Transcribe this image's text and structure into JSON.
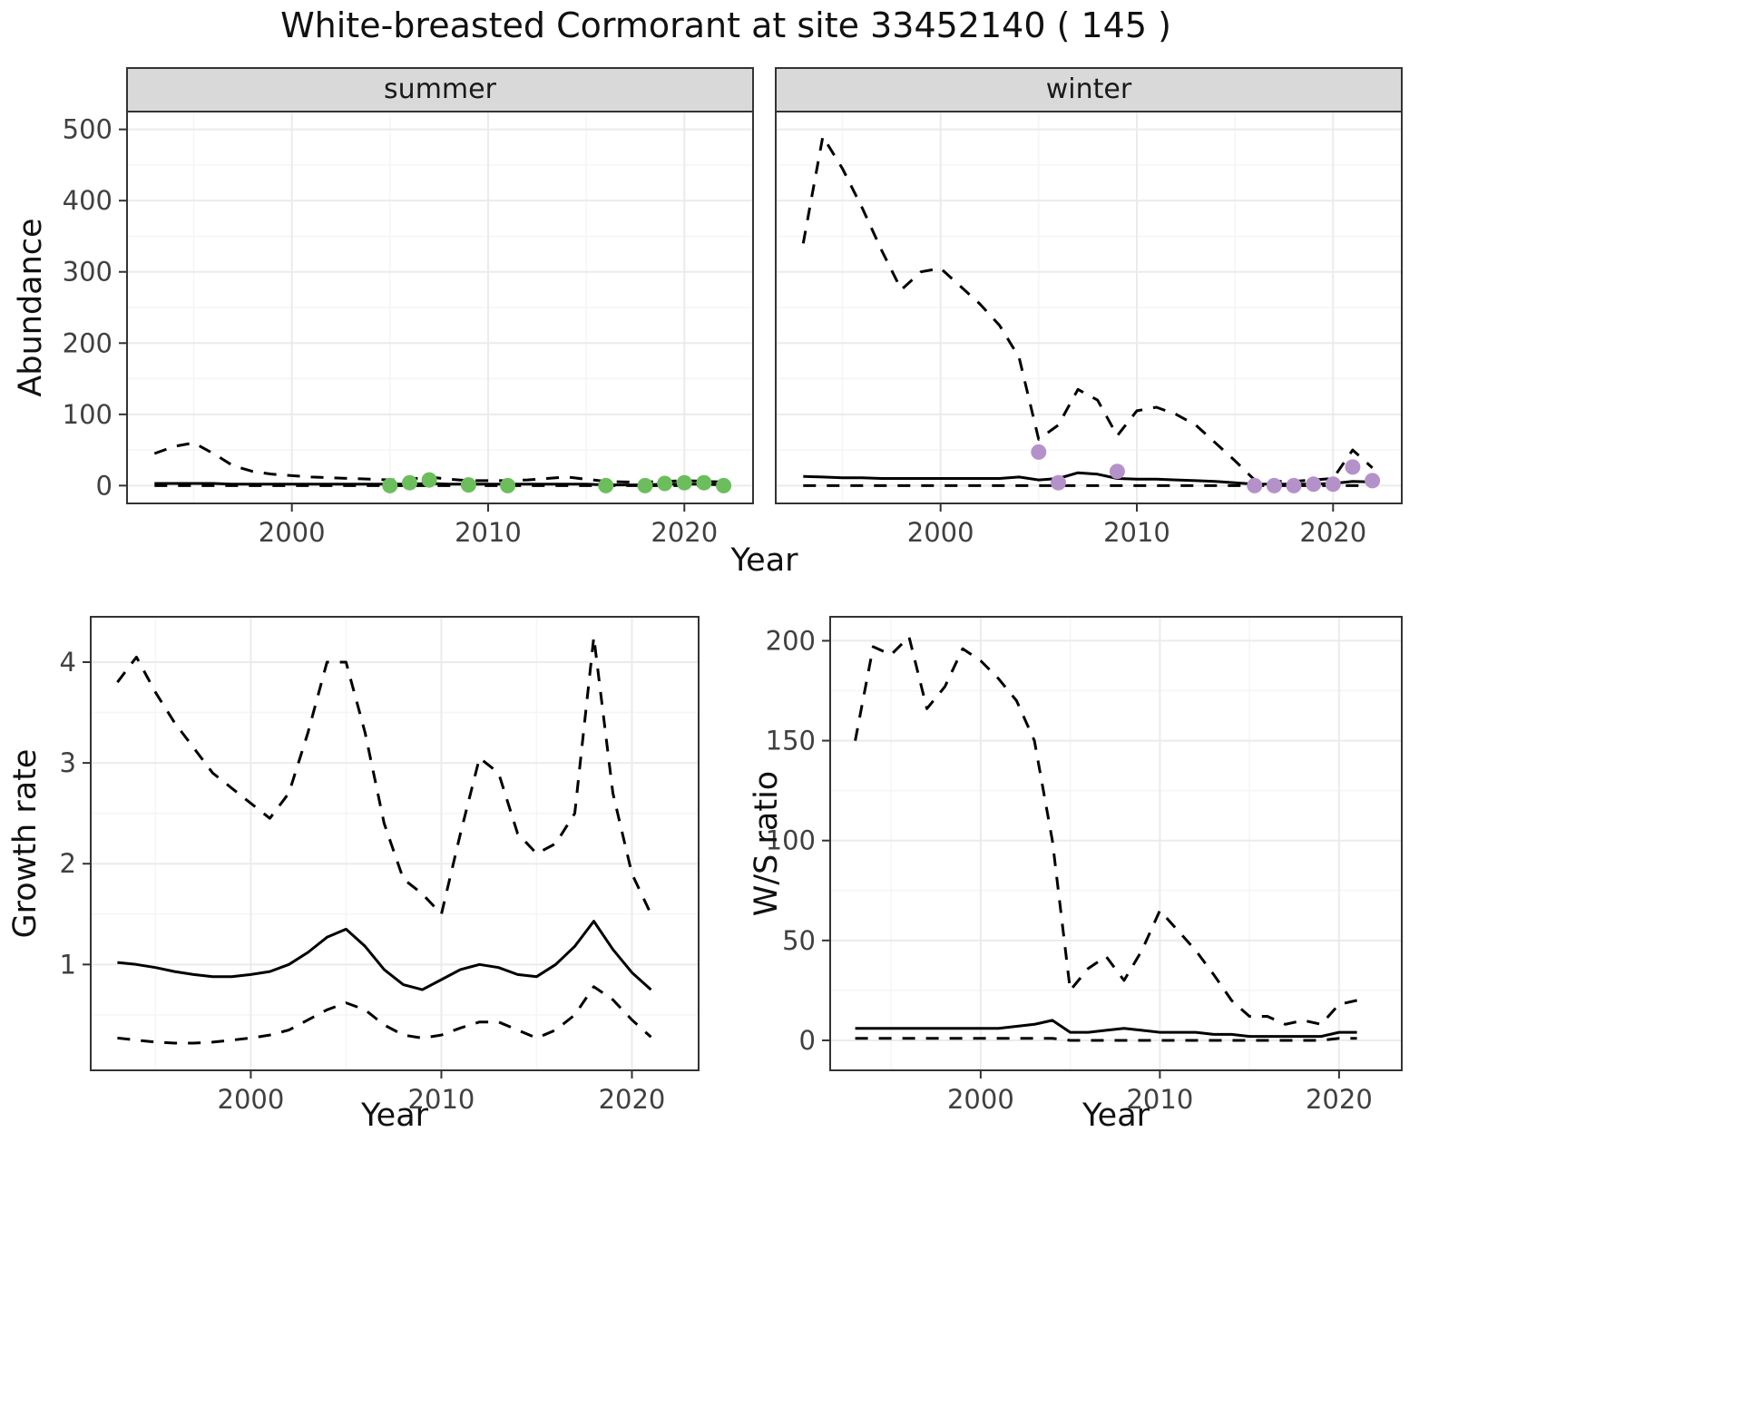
{
  "title": "White-breasted Cormorant at site 33452140 ( 145 )",
  "theme": {
    "panel_fill": "#ffffff",
    "strip_fill": "#d9d9d9",
    "grid_major": "#ebebeb",
    "grid_minor": "#f5f5f5",
    "border": "#333333",
    "tick_color": "#333333",
    "tick_label_color": "#404040",
    "line_color": "#000000",
    "summer_point_color": "#6bbe5b",
    "winter_point_color": "#b591c9"
  },
  "chart_data": [
    {
      "id": "abundance",
      "type": "line",
      "ylabel": "Abundance",
      "xlabel": "Year",
      "xlim": [
        1991.6,
        2023.5
      ],
      "ylim": [
        -25,
        525
      ],
      "xticks": [
        2000,
        2010,
        2020
      ],
      "yticks": [
        0,
        100,
        200,
        300,
        400,
        500
      ],
      "years": [
        1993,
        1994,
        1995,
        1996,
        1997,
        1998,
        1999,
        2000,
        2001,
        2002,
        2003,
        2004,
        2005,
        2006,
        2007,
        2008,
        2009,
        2010,
        2011,
        2012,
        2013,
        2014,
        2015,
        2016,
        2017,
        2018,
        2019,
        2020,
        2021,
        2022
      ],
      "facets": [
        {
          "label": "summer",
          "point_color": "#6bbe5b",
          "series": [
            {
              "name": "upper-ci",
              "style": "dashed",
              "values": [
                45,
                55,
                60,
                45,
                28,
                20,
                16,
                14,
                12,
                11,
                10,
                9,
                8,
                9,
                12,
                9,
                7,
                7,
                7,
                8,
                10,
                12,
                9,
                6,
                5,
                5,
                6,
                7,
                6,
                5
              ]
            },
            {
              "name": "mean",
              "style": "solid",
              "values": [
                3,
                3,
                3,
                3,
                2,
                2,
                2,
                2,
                2,
                2,
                2,
                2,
                2,
                2,
                3,
                2,
                2,
                2,
                2,
                2,
                2,
                2,
                2,
                1,
                1,
                1,
                2,
                2,
                2,
                1
              ]
            },
            {
              "name": "lower-ci",
              "style": "dashed",
              "values": [
                0,
                0,
                0,
                0,
                0,
                0,
                0,
                0,
                0,
                0,
                0,
                0,
                0,
                0,
                0,
                0,
                0,
                0,
                0,
                0,
                0,
                0,
                0,
                0,
                0,
                0,
                0,
                0,
                0,
                0
              ]
            }
          ],
          "observed_points": [
            [
              2005,
              0
            ],
            [
              2006,
              4
            ],
            [
              2007,
              8
            ],
            [
              2009,
              1
            ],
            [
              2011,
              0
            ],
            [
              2016,
              0
            ],
            [
              2018,
              0
            ],
            [
              2019,
              3
            ],
            [
              2020,
              4
            ],
            [
              2021,
              4
            ],
            [
              2022,
              0
            ]
          ]
        },
        {
          "label": "winter",
          "point_color": "#b591c9",
          "series": [
            {
              "name": "upper-ci",
              "style": "dashed",
              "values": [
                340,
                490,
                445,
                390,
                330,
                275,
                300,
                305,
                280,
                255,
                225,
                180,
                65,
                85,
                135,
                120,
                70,
                105,
                110,
                100,
                85,
                60,
                35,
                8,
                6,
                6,
                8,
                10,
                50,
                25
              ]
            },
            {
              "name": "mean",
              "style": "solid",
              "values": [
                13,
                12,
                11,
                11,
                10,
                10,
                10,
                10,
                10,
                10,
                10,
                12,
                8,
                10,
                18,
                16,
                10,
                9,
                9,
                8,
                7,
                6,
                4,
                2,
                2,
                2,
                2,
                3,
                6,
                5
              ]
            },
            {
              "name": "lower-ci",
              "style": "dashed",
              "values": [
                0,
                0,
                0,
                0,
                0,
                0,
                0,
                0,
                0,
                0,
                0,
                0,
                0,
                0,
                0,
                0,
                0,
                0,
                0,
                0,
                0,
                0,
                0,
                0,
                0,
                0,
                0,
                0,
                0,
                0
              ]
            }
          ],
          "observed_points": [
            [
              2005,
              47
            ],
            [
              2006,
              4
            ],
            [
              2009,
              20
            ],
            [
              2016,
              0
            ],
            [
              2017,
              0
            ],
            [
              2018,
              0
            ],
            [
              2019,
              2
            ],
            [
              2020,
              2
            ],
            [
              2021,
              26
            ],
            [
              2022,
              7
            ]
          ]
        }
      ]
    },
    {
      "id": "growth_rate",
      "type": "line",
      "ylabel": "Growth rate",
      "xlabel": "Year",
      "xlim": [
        1991.6,
        2023.5
      ],
      "ylim": [
        -0.05,
        4.45
      ],
      "xticks": [
        2000,
        2010,
        2020
      ],
      "yticks": [
        1,
        2,
        3,
        4
      ],
      "years": [
        1993,
        1994,
        1995,
        1996,
        1997,
        1998,
        1999,
        2000,
        2001,
        2002,
        2003,
        2004,
        2005,
        2006,
        2007,
        2008,
        2009,
        2010,
        2011,
        2012,
        2013,
        2014,
        2015,
        2016,
        2017,
        2018,
        2019,
        2020,
        2021
      ],
      "series": [
        {
          "name": "upper-ci",
          "style": "dashed",
          "values": [
            3.8,
            4.05,
            3.7,
            3.4,
            3.15,
            2.9,
            2.75,
            2.6,
            2.45,
            2.7,
            3.3,
            4.0,
            4.0,
            3.3,
            2.4,
            1.85,
            1.7,
            1.5,
            2.3,
            3.05,
            2.9,
            2.3,
            2.1,
            2.2,
            2.5,
            4.25,
            2.7,
            1.9,
            1.5
          ]
        },
        {
          "name": "mean",
          "style": "solid",
          "values": [
            1.02,
            1.0,
            0.97,
            0.93,
            0.9,
            0.88,
            0.88,
            0.9,
            0.93,
            1.0,
            1.12,
            1.27,
            1.35,
            1.18,
            0.95,
            0.8,
            0.75,
            0.85,
            0.95,
            1.0,
            0.97,
            0.9,
            0.88,
            1.0,
            1.18,
            1.43,
            1.15,
            0.92,
            0.75
          ]
        },
        {
          "name": "lower-ci",
          "style": "dashed",
          "values": [
            0.27,
            0.25,
            0.23,
            0.22,
            0.22,
            0.23,
            0.25,
            0.27,
            0.3,
            0.35,
            0.45,
            0.55,
            0.62,
            0.55,
            0.4,
            0.3,
            0.27,
            0.3,
            0.37,
            0.43,
            0.43,
            0.35,
            0.27,
            0.35,
            0.5,
            0.78,
            0.65,
            0.45,
            0.28
          ]
        }
      ]
    },
    {
      "id": "ws_ratio",
      "type": "line",
      "ylabel": "W/S ratio",
      "xlabel": "Year",
      "xlim": [
        1991.6,
        2023.5
      ],
      "ylim": [
        -15,
        212
      ],
      "xticks": [
        2000,
        2010,
        2020
      ],
      "yticks": [
        0,
        50,
        100,
        150,
        200
      ],
      "years": [
        1993,
        1994,
        1995,
        1996,
        1997,
        1998,
        1999,
        2000,
        2001,
        2002,
        2003,
        2004,
        2005,
        2006,
        2007,
        2008,
        2009,
        2010,
        2011,
        2012,
        2013,
        2014,
        2015,
        2016,
        2017,
        2018,
        2019,
        2020,
        2021
      ],
      "series": [
        {
          "name": "upper-ci",
          "style": "dashed",
          "values": [
            150,
            197,
            193,
            202,
            166,
            177,
            196,
            190,
            181,
            170,
            150,
            100,
            25,
            36,
            42,
            30,
            45,
            65,
            55,
            45,
            33,
            20,
            12,
            12,
            8,
            10,
            8,
            18,
            20
          ]
        },
        {
          "name": "mean",
          "style": "solid",
          "values": [
            6,
            6,
            6,
            6,
            6,
            6,
            6,
            6,
            6,
            7,
            8,
            10,
            4,
            4,
            5,
            6,
            5,
            4,
            4,
            4,
            3,
            3,
            2,
            2,
            2,
            2,
            2,
            4,
            4
          ]
        },
        {
          "name": "lower-ci",
          "style": "dashed",
          "values": [
            1,
            1,
            1,
            1,
            1,
            1,
            1,
            1,
            1,
            1,
            1,
            1,
            0,
            0,
            0,
            0,
            0,
            0,
            0,
            0,
            0,
            0,
            0,
            0,
            0,
            0,
            0,
            1,
            1
          ]
        }
      ]
    }
  ]
}
